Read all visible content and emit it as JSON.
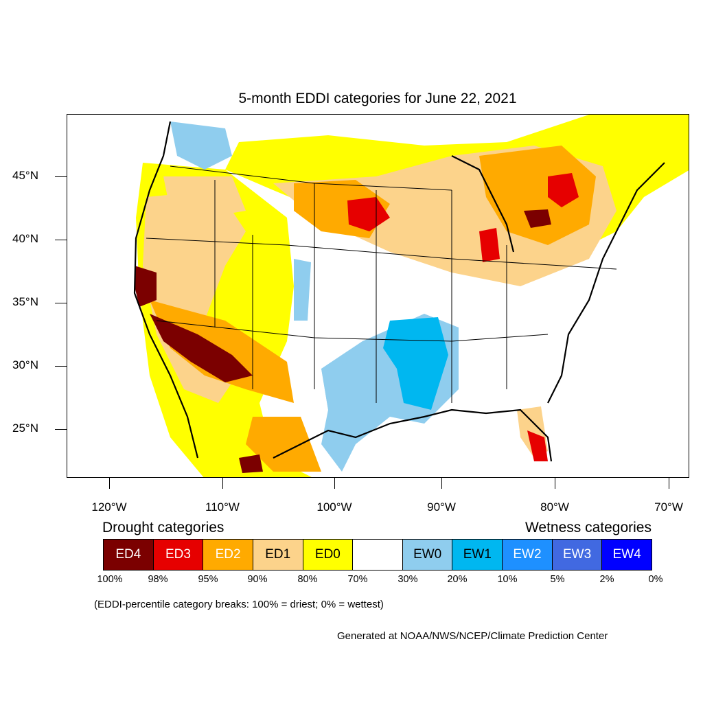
{
  "title": "5-month EDDI categories for June 22, 2021",
  "axes": {
    "latitude_labels": [
      "45°N",
      "40°N",
      "35°N",
      "30°N",
      "25°N"
    ],
    "longitude_labels": [
      "120°W",
      "110°W",
      "100°W",
      "90°W",
      "80°W",
      "70°W"
    ]
  },
  "legend": {
    "drought_heading": "Drought categories",
    "wetness_heading": "Wetness categories",
    "categories": [
      {
        "label": "ED4",
        "color": "#7b0000",
        "text_color": "#ffffff"
      },
      {
        "label": "ED3",
        "color": "#e60000",
        "text_color": "#ffffff"
      },
      {
        "label": "ED2",
        "color": "#ffaa00",
        "text_color": "#ffffff"
      },
      {
        "label": "ED1",
        "color": "#fcd38b",
        "text_color": "#000000"
      },
      {
        "label": "ED0",
        "color": "#ffff00",
        "text_color": "#000000"
      },
      {
        "label": "",
        "color": "#ffffff",
        "text_color": "#000000"
      },
      {
        "label": "EW0",
        "color": "#8fcdee",
        "text_color": "#000000"
      },
      {
        "label": "EW1",
        "color": "#00b7f0",
        "text_color": "#000000"
      },
      {
        "label": "EW2",
        "color": "#1e90ff",
        "text_color": "#ffffff"
      },
      {
        "label": "EW3",
        "color": "#4169e1",
        "text_color": "#ffffff"
      },
      {
        "label": "EW4",
        "color": "#0000ff",
        "text_color": "#ffffff"
      }
    ],
    "breaks": [
      "100%",
      "98%",
      "95%",
      "90%",
      "80%",
      "70%",
      "30%",
      "20%",
      "10%",
      "5%",
      "2%",
      "0%"
    ]
  },
  "note": "(EDDI-percentile category breaks: 100% = driest; 0% = wettest)",
  "credit": "Generated at NOAA/NWS/NCEP/Climate Prediction Center"
}
